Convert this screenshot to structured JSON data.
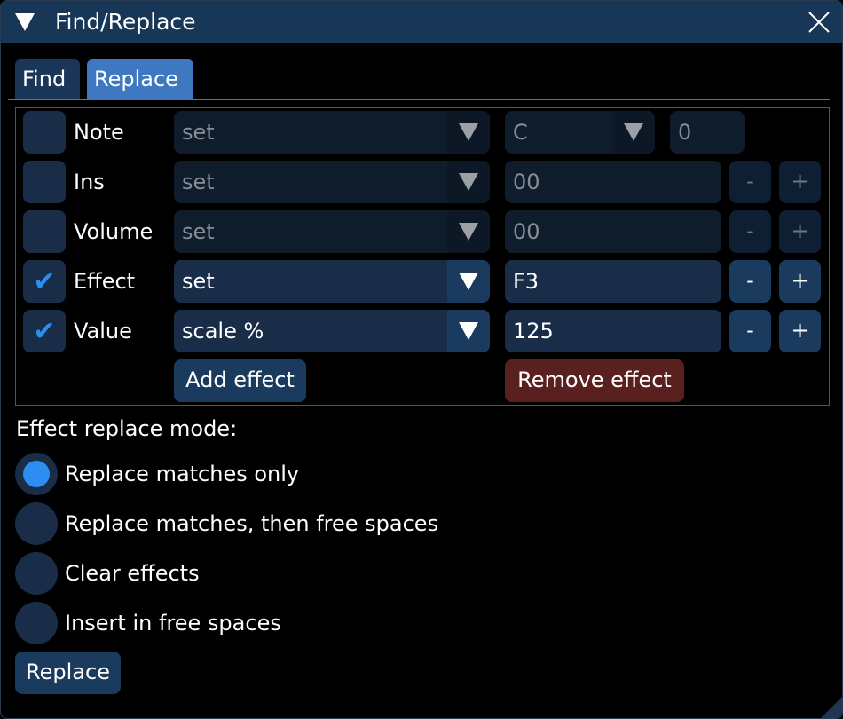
{
  "window": {
    "title": "Find/Replace"
  },
  "tabs": [
    {
      "label": "Find",
      "active": false
    },
    {
      "label": "Replace",
      "active": true
    }
  ],
  "rows": [
    {
      "label": "Note",
      "checked": false,
      "mode": "set",
      "value_combo": "C",
      "value": "0"
    },
    {
      "label": "Ins",
      "checked": false,
      "mode": "set",
      "value": "00"
    },
    {
      "label": "Volume",
      "checked": false,
      "mode": "set",
      "value": "00"
    },
    {
      "label": "Effect",
      "checked": true,
      "mode": "set",
      "value": "F3"
    },
    {
      "label": "Value",
      "checked": true,
      "mode": "scale %",
      "value": "125"
    }
  ],
  "minus": "-",
  "plus": "+",
  "check": "✔",
  "add_effect": "Add effect",
  "remove_effect": "Remove effect",
  "mode_label": "Effect replace mode:",
  "modes": [
    {
      "label": "Replace matches only",
      "selected": true
    },
    {
      "label": "Replace matches, then free spaces",
      "selected": false
    },
    {
      "label": "Clear effects",
      "selected": false
    },
    {
      "label": "Insert in free spaces",
      "selected": false
    }
  ],
  "replace_button": "Replace",
  "colors": {
    "accent": "#2b8ef0",
    "title_bg": "#183656",
    "tab_active": "#3e78c0",
    "danger": "#5a2020"
  }
}
